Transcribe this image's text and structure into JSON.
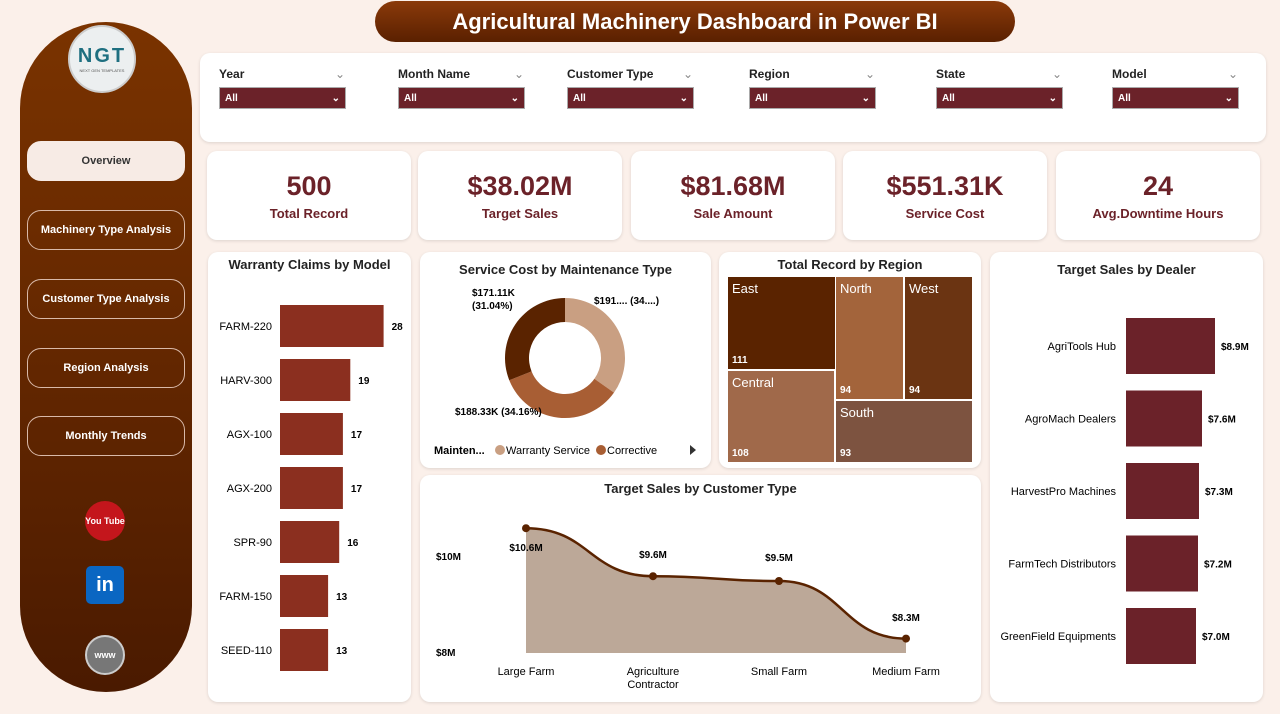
{
  "title": "Agricultural Machinery Dashboard in Power BI",
  "logo": {
    "text": "NGT",
    "sub": "NEXT GEN TEMPLATES"
  },
  "nav": [
    {
      "label": "Overview",
      "active": true
    },
    {
      "label": "Machinery Type Analysis"
    },
    {
      "label": "Customer Type Analysis"
    },
    {
      "label": "Region Analysis"
    },
    {
      "label": "Monthly Trends"
    }
  ],
  "social": [
    {
      "icon": "youtube-icon",
      "label": "You Tube"
    },
    {
      "icon": "linkedin-icon",
      "label": "in"
    },
    {
      "icon": "globe-icon",
      "label": "www"
    }
  ],
  "filters": [
    {
      "label": "Year",
      "value": "All"
    },
    {
      "label": "Month Name",
      "value": "All"
    },
    {
      "label": "Customer Type",
      "value": "All"
    },
    {
      "label": "Region",
      "value": "All"
    },
    {
      "label": "State",
      "value": "All"
    },
    {
      "label": "Model",
      "value": "All"
    }
  ],
  "kpis": [
    {
      "value": "500",
      "label": "Total Record"
    },
    {
      "value": "$38.02M",
      "label": "Target Sales"
    },
    {
      "value": "$81.68M",
      "label": "Sale Amount"
    },
    {
      "value": "$551.31K",
      "label": "Service Cost"
    },
    {
      "value": "24",
      "label": "Avg.Downtime Hours"
    }
  ],
  "colors": {
    "primary": "#6b2229",
    "bar": "#8b2f1f",
    "sidebar": "#7a3300"
  },
  "chart_data": [
    {
      "type": "bar",
      "orientation": "horizontal",
      "title": "Warranty Claims by Model",
      "categories": [
        "FARM-220",
        "HARV-300",
        "AGX-100",
        "AGX-200",
        "SPR-90",
        "FARM-150",
        "SEED-110"
      ],
      "values": [
        28,
        19,
        17,
        17,
        16,
        13,
        13
      ]
    },
    {
      "type": "pie",
      "donut": true,
      "title": "Service Cost by Maintenance Type",
      "legend_title": "Mainten...",
      "slices": [
        {
          "name": "Warranty Service",
          "label": "$191.... (34....)",
          "value": 191.87,
          "color": "#c99f82"
        },
        {
          "name": "Corrective",
          "label": "$188.33K (34.16%)",
          "value": 188.33,
          "color": "#a85e34"
        },
        {
          "name": "",
          "label": "$171.11K\n(31.04%)",
          "value": 171.11,
          "color": "#5a2300"
        }
      ]
    },
    {
      "type": "treemap",
      "title": "Total Record by Region",
      "items": [
        {
          "name": "East",
          "value": 111
        },
        {
          "name": "North",
          "value": 94
        },
        {
          "name": "West",
          "value": 94
        },
        {
          "name": "Central",
          "value": 108
        },
        {
          "name": "South",
          "value": 93
        }
      ]
    },
    {
      "type": "bar",
      "orientation": "horizontal",
      "title": "Target Sales by Dealer",
      "categories": [
        "AgriTools Hub",
        "AgroMach Dealers",
        "HarvestPro Machines",
        "FarmTech Distributors",
        "GreenField Equipments"
      ],
      "values": [
        8.9,
        7.6,
        7.3,
        7.2,
        7.0
      ],
      "labels": [
        "$8.9M",
        "$7.6M",
        "$7.3M",
        "$7.2M",
        "$7.0M"
      ]
    },
    {
      "type": "area",
      "title": "Target Sales by Customer Type",
      "categories": [
        "Large Farm",
        "Agriculture Contractor",
        "Small Farm",
        "Medium Farm"
      ],
      "values": [
        10.6,
        9.6,
        9.5,
        8.3
      ],
      "labels": [
        "$10.6M",
        "$9.6M",
        "$9.5M",
        "$8.3M"
      ],
      "yticks": [
        "$10M",
        "$8M"
      ],
      "ylim": [
        8,
        10
      ]
    }
  ]
}
